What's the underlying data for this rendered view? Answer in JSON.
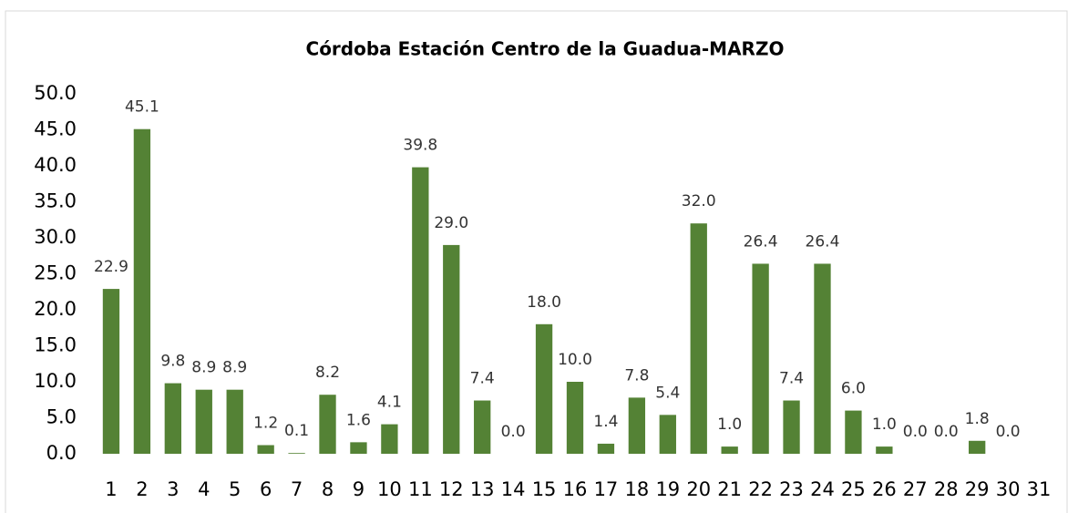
{
  "chart_data": {
    "type": "bar",
    "title": "Córdoba Estación Centro de la Guadua-MARZO",
    "categories": [
      "1",
      "2",
      "3",
      "4",
      "5",
      "6",
      "7",
      "8",
      "9",
      "10",
      "11",
      "12",
      "13",
      "14",
      "15",
      "16",
      "17",
      "18",
      "19",
      "20",
      "21",
      "22",
      "23",
      "24",
      "25",
      "26",
      "27",
      "28",
      "29",
      "30",
      "31"
    ],
    "values": [
      22.9,
      45.1,
      9.8,
      8.9,
      8.9,
      1.2,
      0.1,
      8.2,
      1.6,
      4.1,
      39.8,
      29.0,
      7.4,
      0.0,
      18.0,
      10.0,
      1.4,
      7.8,
      5.4,
      32.0,
      1.0,
      26.4,
      7.4,
      26.4,
      6.0,
      1.0,
      0.0,
      0.0,
      1.8,
      0.0,
      null
    ],
    "value_labels": [
      "22.9",
      "45.1",
      "9.8",
      "8.9",
      "8.9",
      "1.2",
      "0.1",
      "8.2",
      "1.6",
      "4.1",
      "39.8",
      "29.0",
      "7.4",
      "0.0",
      "18.0",
      "10.0",
      "1.4",
      "7.8",
      "5.4",
      "32.0",
      "1.0",
      "26.4",
      "7.4",
      "26.4",
      "6.0",
      "1.0",
      "0.0",
      "0.0",
      "1.8",
      "0.0",
      null
    ],
    "color": "#548235",
    "ylim": [
      0,
      50
    ],
    "yticks": [
      {
        "value": 0,
        "label": "0.0"
      },
      {
        "value": 5,
        "label": "5.0"
      },
      {
        "value": 10,
        "label": "10.0"
      },
      {
        "value": 15,
        "label": "15.0"
      },
      {
        "value": 20,
        "label": "20.0"
      },
      {
        "value": 25,
        "label": "25.0"
      },
      {
        "value": 30,
        "label": "30.0"
      },
      {
        "value": 35,
        "label": "35.0"
      },
      {
        "value": 40,
        "label": "40.0"
      },
      {
        "value": 45,
        "label": "45.0"
      },
      {
        "value": 50,
        "label": "50.0"
      }
    ],
    "grid": false
  }
}
